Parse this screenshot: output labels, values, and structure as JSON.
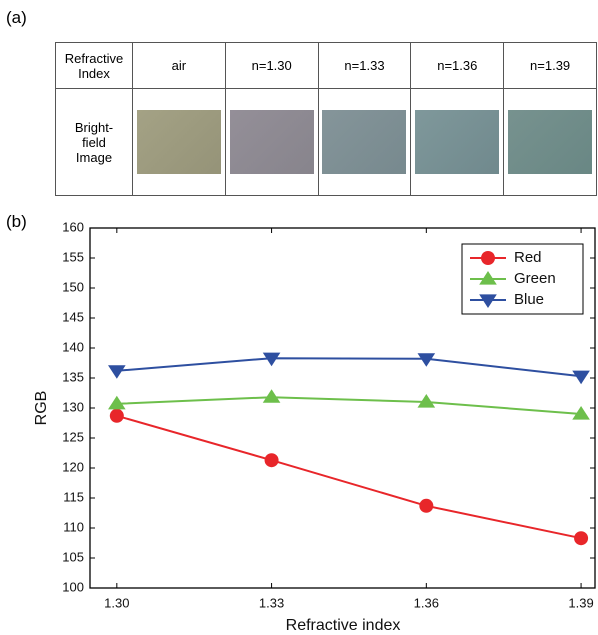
{
  "panel_labels": [
    "(a)",
    "(b)"
  ],
  "table": {
    "header": [
      "Refractive\nIndex",
      "air",
      "n=1.30",
      "n=1.33",
      "n=1.36",
      "n=1.39"
    ],
    "rows": [
      [
        "Bright-\nfield\nImage"
      ]
    ]
  },
  "chart_data": {
    "type": "line",
    "x_label": "Refractive index",
    "y_label": "RGB",
    "x": [
      1.3,
      1.33,
      1.36,
      1.39
    ],
    "xlim": [
      1.2948,
      1.3927
    ],
    "xticks": [
      {
        "value": 1.3,
        "label": "1.30"
      },
      {
        "value": 1.33,
        "label": "1.33"
      },
      {
        "value": 1.36,
        "label": "1.36"
      },
      {
        "value": 1.39,
        "label": "1.39"
      }
    ],
    "ylim": [
      100,
      160
    ],
    "yticks": [
      100,
      105,
      110,
      115,
      120,
      125,
      130,
      135,
      140,
      145,
      150,
      155,
      160
    ],
    "legend": "top-right",
    "series": [
      {
        "name": "Red",
        "color": "#e8262a",
        "marker": "circle",
        "values": [
          128.7,
          121.3,
          113.7,
          108.3
        ]
      },
      {
        "name": "Green",
        "color": "#6dbf4b",
        "marker": "triangle-up",
        "values": [
          130.7,
          131.8,
          131.0,
          129.0
        ]
      },
      {
        "name": "Blue",
        "color": "#2e4fa0",
        "marker": "triangle-down",
        "values": [
          136.2,
          138.3,
          138.2,
          135.3
        ]
      }
    ]
  }
}
